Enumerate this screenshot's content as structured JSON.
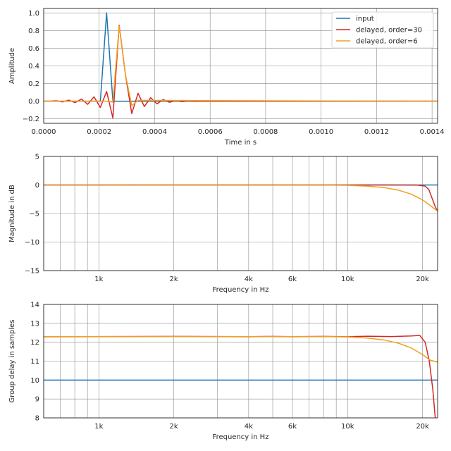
{
  "colors": {
    "input": "#1f77b4",
    "delayed_30": "#d62728",
    "delayed_6": "#f0a020"
  },
  "chart_data": [
    {
      "type": "line",
      "xlabel": "Time in s",
      "ylabel": "Amplitude",
      "xlim": [
        0,
        0.00142
      ],
      "ylim": [
        -0.25,
        1.05
      ],
      "grid": true,
      "legend_position": "top-right",
      "x_ticks": [
        0,
        0.0002,
        0.0004,
        0.0006,
        0.0008,
        0.001,
        0.0012,
        0.0014
      ],
      "x_tick_labels": [
        "0.0000",
        "0.0002",
        "0.0004",
        "0.0006",
        "0.0008",
        "0.0010",
        "0.0012",
        "0.0014"
      ],
      "y_ticks": [
        -0.2,
        0.0,
        0.2,
        0.4,
        0.6,
        0.8,
        1.0
      ],
      "y_tick_labels": [
        "−0.2",
        "0.0",
        "0.2",
        "0.4",
        "0.6",
        "0.8",
        "1.0"
      ],
      "series": [
        {
          "name": "input",
          "x": [
            0,
            0.0002042,
            0.0002268,
            0.0002494,
            0.00142
          ],
          "y": [
            0,
            0,
            1.0,
            0,
            0
          ]
        },
        {
          "name": "delayed, order=30",
          "x": [
            0,
            2.27e-05,
            4.54e-05,
            6.8e-05,
            9.07e-05,
            0.0001134,
            0.0001361,
            0.0001587,
            0.0001814,
            0.0002041,
            0.0002268,
            0.0002494,
            0.0002721,
            0.0002948,
            0.0003175,
            0.0003401,
            0.0003628,
            0.0003855,
            0.0004082,
            0.0004308,
            0.0004535,
            0.0004762,
            0.0004989,
            0.0005215,
            0.0005442,
            0.0005669,
            0.0005896,
            0.00142
          ],
          "y": [
            0,
            0,
            0.005,
            -0.008,
            0.012,
            -0.016,
            0.025,
            -0.035,
            0.05,
            -0.07,
            0.11,
            -0.19,
            0.86,
            0.3,
            -0.14,
            0.09,
            -0.06,
            0.04,
            -0.03,
            0.02,
            -0.012,
            0.008,
            -0.005,
            0.003,
            -0.002,
            0.001,
            0,
            0
          ]
        },
        {
          "name": "delayed, order=6",
          "x": [
            0,
            0.0002268,
            0.0002494,
            0.0002721,
            0.0002948,
            0.0003175,
            0.0003401,
            0.00142
          ],
          "y": [
            0,
            0,
            -0.01,
            0.85,
            0.3,
            -0.05,
            0.01,
            0
          ]
        }
      ]
    },
    {
      "type": "line",
      "xlabel": "Frequency in Hz",
      "ylabel": "Magnitude in dB",
      "x_scale": "log",
      "xlim": [
        600,
        23000
      ],
      "ylim": [
        -15,
        5
      ],
      "grid": true,
      "x_ticks": [
        1000,
        2000,
        4000,
        6000,
        10000,
        20000
      ],
      "x_tick_labels": [
        "1k",
        "2k",
        "4k",
        "6k",
        "10k",
        "20k"
      ],
      "y_ticks": [
        -15,
        -10,
        -5,
        0,
        5
      ],
      "y_tick_labels": [
        "−15",
        "−10",
        "−5",
        "0",
        "5"
      ],
      "series": [
        {
          "name": "input",
          "x": [
            600,
            23000
          ],
          "y": [
            0,
            0
          ]
        },
        {
          "name": "delayed, order=30",
          "x": [
            600,
            10000,
            15000,
            19000,
            20500,
            21200,
            21800,
            22500,
            23000
          ],
          "y": [
            0,
            0,
            0,
            -0.02,
            -0.2,
            -0.8,
            -2.2,
            -3.8,
            -4.6
          ]
        },
        {
          "name": "delayed, order=6",
          "x": [
            600,
            8000,
            10000,
            12000,
            14000,
            16000,
            18000,
            20000,
            21500,
            23000
          ],
          "y": [
            0,
            -0.02,
            -0.06,
            -0.2,
            -0.45,
            -0.9,
            -1.6,
            -2.6,
            -3.6,
            -4.6
          ]
        }
      ]
    },
    {
      "type": "line",
      "xlabel": "Frequency in Hz",
      "ylabel": "Group delay in samples",
      "x_scale": "log",
      "xlim": [
        600,
        23000
      ],
      "ylim": [
        8,
        14
      ],
      "grid": true,
      "x_ticks": [
        1000,
        2000,
        4000,
        6000,
        10000,
        20000
      ],
      "x_tick_labels": [
        "1k",
        "2k",
        "4k",
        "6k",
        "10k",
        "20k"
      ],
      "y_ticks": [
        8,
        9,
        10,
        11,
        12,
        13,
        14
      ],
      "y_tick_labels": [
        "8",
        "9",
        "10",
        "11",
        "12",
        "13",
        "14"
      ],
      "series": [
        {
          "name": "input",
          "x": [
            600,
            23000
          ],
          "y": [
            10,
            10
          ]
        },
        {
          "name": "delayed, order=30",
          "x": [
            600,
            2000,
            4000,
            5000,
            6000,
            8000,
            10000,
            12000,
            15000,
            18000,
            19500,
            20500,
            21300,
            22000,
            22500
          ],
          "y": [
            12.29,
            12.31,
            12.29,
            12.31,
            12.29,
            12.31,
            12.29,
            12.32,
            12.3,
            12.33,
            12.36,
            12.0,
            11.0,
            9.5,
            8.0
          ]
        },
        {
          "name": "delayed, order=6",
          "x": [
            600,
            2000,
            5000,
            8000,
            10000,
            12000,
            14000,
            16000,
            18000,
            20000,
            21500,
            23000
          ],
          "y": [
            12.3,
            12.3,
            12.3,
            12.3,
            12.28,
            12.22,
            12.12,
            11.95,
            11.7,
            11.35,
            11.05,
            10.95
          ]
        }
      ]
    }
  ]
}
